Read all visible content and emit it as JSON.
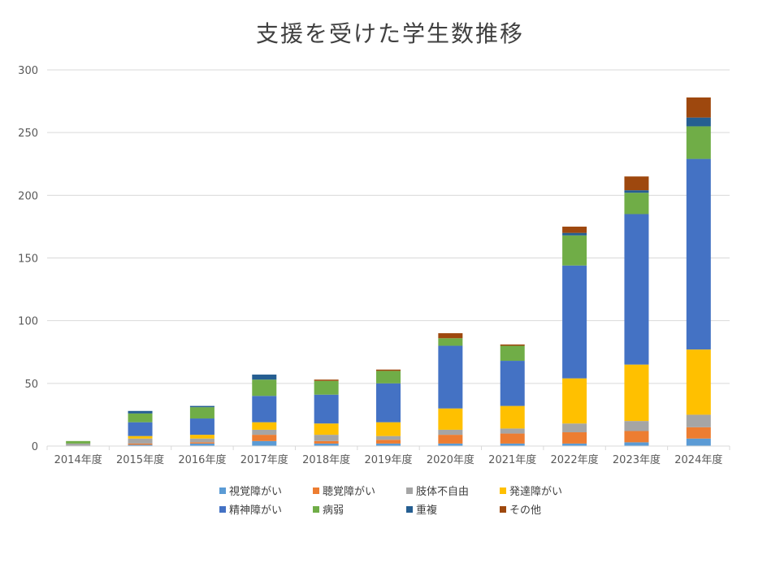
{
  "chart_data": {
    "type": "bar",
    "stacked": true,
    "title": "支援を受けた学生数推移",
    "xlabel": "",
    "ylabel": "",
    "ylim": [
      0,
      300
    ],
    "yticks": [
      0,
      50,
      100,
      150,
      200,
      250,
      300
    ],
    "grid": true,
    "legend_position": "bottom",
    "categories": [
      "2014年度",
      "2015年度",
      "2016年度",
      "2017年度",
      "2018年度",
      "2019年度",
      "2020年度",
      "2021年度",
      "2022年度",
      "2023年度",
      "2024年度"
    ],
    "series": [
      {
        "name": "視覚障がい",
        "color": "#5B9BD5",
        "values": [
          0,
          1,
          2,
          4,
          2,
          2,
          2,
          2,
          2,
          3,
          6
        ]
      },
      {
        "name": "聴覚障がい",
        "color": "#ED7D31",
        "values": [
          0,
          1,
          1,
          5,
          2,
          3,
          7,
          8,
          9,
          9,
          9
        ]
      },
      {
        "name": "肢体不自由",
        "color": "#A5A5A5",
        "values": [
          2,
          4,
          3,
          4,
          5,
          3,
          4,
          4,
          7,
          8,
          10
        ]
      },
      {
        "name": "発達障がい",
        "color": "#FFC000",
        "values": [
          0,
          2,
          3,
          6,
          9,
          11,
          17,
          18,
          36,
          45,
          52
        ]
      },
      {
        "name": "精神障がい",
        "color": "#4472C4",
        "values": [
          0,
          11,
          13,
          21,
          23,
          31,
          50,
          36,
          90,
          120,
          152
        ]
      },
      {
        "name": "病弱",
        "color": "#70AD47",
        "values": [
          2,
          7,
          9,
          13,
          11,
          10,
          6,
          12,
          24,
          17,
          26
        ]
      },
      {
        "name": "重複",
        "color": "#255E91",
        "values": [
          0,
          2,
          1,
          4,
          0,
          0,
          0,
          0,
          2,
          2,
          7
        ]
      },
      {
        "name": "その他",
        "color": "#9E480E",
        "values": [
          0,
          0,
          0,
          0,
          1,
          1,
          4,
          1,
          5,
          11,
          16
        ]
      }
    ]
  }
}
